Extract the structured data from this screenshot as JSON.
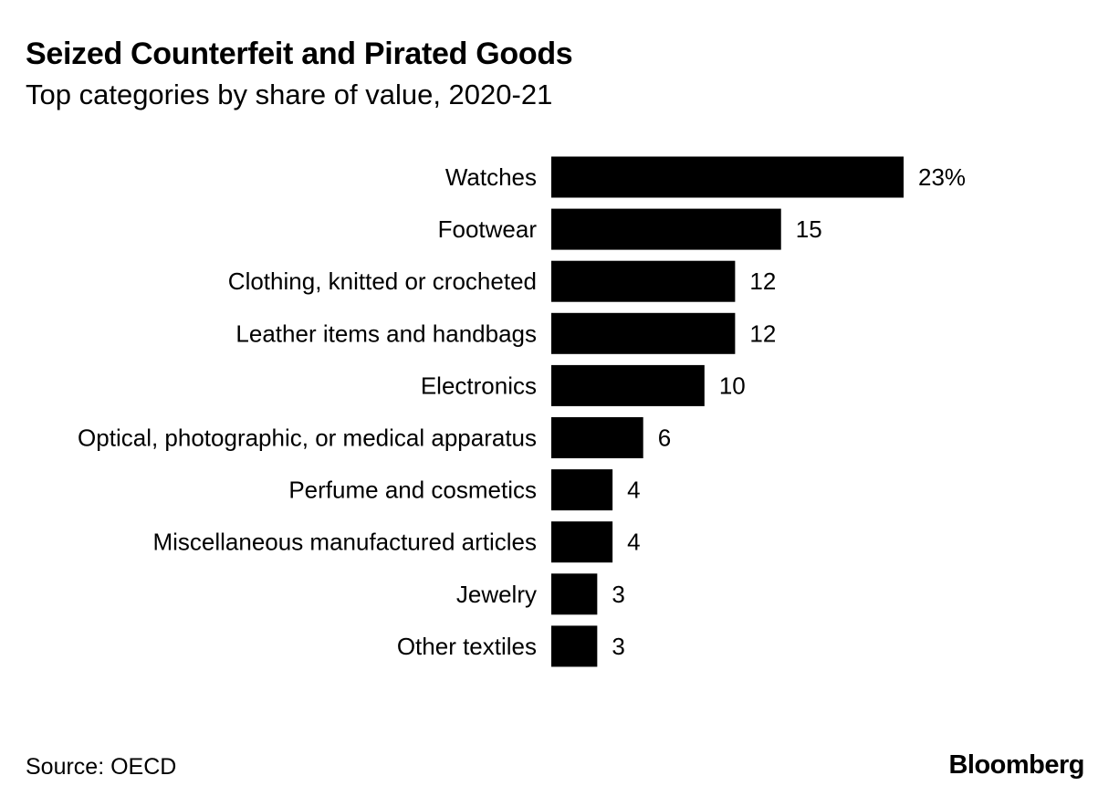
{
  "header": {
    "title": "Seized Counterfeit and Pirated Goods",
    "subtitle": "Top categories by share of value, 2020-21"
  },
  "footer": {
    "source": "Source: OECD",
    "logo": "Bloomberg"
  },
  "colors": {
    "bar": "#000000",
    "text": "#000000",
    "background": "#ffffff"
  },
  "chart_data": {
    "type": "bar",
    "orientation": "horizontal",
    "title": "Seized Counterfeit and Pirated Goods",
    "subtitle": "Top categories by share of value, 2020-21",
    "xlabel": "",
    "ylabel": "",
    "unit": "%",
    "grid": false,
    "categories": [
      "Watches",
      "Footwear",
      "Clothing, knitted or crocheted",
      "Leather items and handbags",
      "Electronics",
      "Optical, photographic, or medical apparatus",
      "Perfume and cosmetics",
      "Miscellaneous manufactured articles",
      "Jewelry",
      "Other textiles"
    ],
    "values": [
      23,
      15,
      12,
      12,
      10,
      6,
      4,
      4,
      3,
      3
    ],
    "value_labels": [
      "23%",
      "15",
      "12",
      "12",
      "10",
      "6",
      "4",
      "4",
      "3",
      "3"
    ],
    "xlim": [
      0,
      23
    ]
  }
}
